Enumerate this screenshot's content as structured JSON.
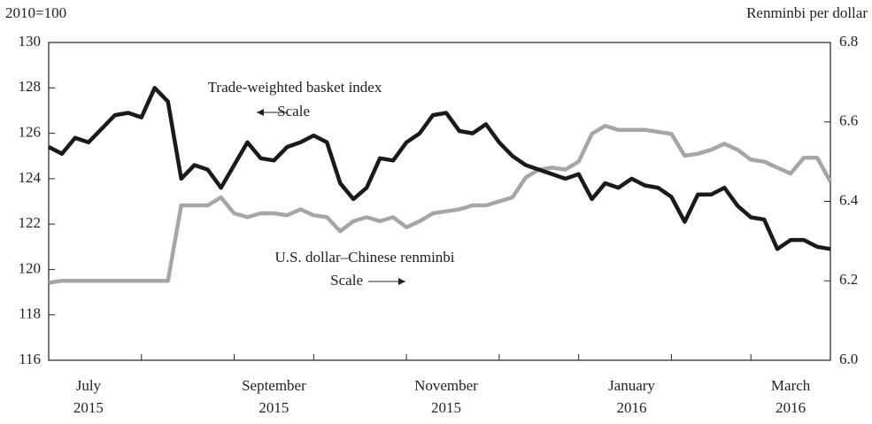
{
  "chart_data": {
    "type": "line",
    "y_label": "2010=100",
    "y2_label": "Renminbi per dollar",
    "categories": [
      null,
      null,
      null,
      "July 2015",
      null,
      null,
      null,
      null,
      null,
      null,
      null,
      null,
      null,
      null,
      null,
      null,
      null,
      "September 2015",
      null,
      null,
      null,
      null,
      null,
      null,
      null,
      null,
      null,
      null,
      null,
      null,
      "November 2015",
      null,
      null,
      null,
      null,
      null,
      null,
      null,
      null,
      null,
      null,
      null,
      null,
      null,
      "January 2016",
      null,
      null,
      null,
      null,
      null,
      null,
      null,
      null,
      null,
      null,
      null,
      "March 2016",
      null,
      null,
      null
    ],
    "series": [
      {
        "name": "Trade-weighted basket index",
        "color": "#1a1a1a",
        "axis": "y",
        "values": [
          125.4,
          125.1,
          125.8,
          125.6,
          126.2,
          126.8,
          126.9,
          126.7,
          128.0,
          127.4,
          124.0,
          124.6,
          124.4,
          123.6,
          124.6,
          125.6,
          124.9,
          124.8,
          125.4,
          125.6,
          125.9,
          125.6,
          123.8,
          123.1,
          123.6,
          124.9,
          124.8,
          125.6,
          126.0,
          126.8,
          126.9,
          126.1,
          126.0,
          126.4,
          125.6,
          125.0,
          124.6,
          124.4,
          124.2,
          124.0,
          124.2,
          123.1,
          123.8,
          123.6,
          124.0,
          123.7,
          123.6,
          123.2,
          122.1,
          123.3,
          123.3,
          123.6,
          122.8,
          122.3,
          122.2,
          120.9,
          121.3,
          121.3,
          121.0,
          120.9
        ]
      },
      {
        "name": "U.S. dollar–Chinese renminbi",
        "color": "#a6a6a6",
        "axis": "y2",
        "values": [
          6.195,
          6.2,
          6.2,
          6.2,
          6.2,
          6.2,
          6.2,
          6.2,
          6.2,
          6.2,
          6.39,
          6.39,
          6.39,
          6.41,
          6.37,
          6.36,
          6.37,
          6.37,
          6.365,
          6.38,
          6.365,
          6.36,
          6.325,
          6.35,
          6.36,
          6.35,
          6.36,
          6.335,
          6.35,
          6.37,
          6.375,
          6.38,
          6.39,
          6.39,
          6.4,
          6.41,
          6.46,
          6.48,
          6.485,
          6.48,
          6.5,
          6.57,
          6.59,
          6.58,
          6.58,
          6.58,
          6.575,
          6.57,
          6.515,
          6.52,
          6.53,
          6.545,
          6.53,
          6.505,
          6.5,
          6.485,
          6.47,
          6.51,
          6.51,
          6.45
        ]
      }
    ],
    "annotations": [
      {
        "text": "Trade-weighted basket index"
      },
      {
        "text": "Scale"
      },
      {
        "text": "U.S. dollar–Chinese renminbi"
      },
      {
        "text": "Scale"
      }
    ],
    "ylim": [
      116,
      130
    ],
    "yticks": [
      116,
      118,
      120,
      122,
      124,
      126,
      128,
      130
    ],
    "y2lim": [
      6.0,
      6.8
    ],
    "y2ticks": [
      {
        "value": 6,
        "label": "6.0"
      },
      6.2,
      6.4,
      6.6,
      6.8
    ],
    "grid": false
  }
}
